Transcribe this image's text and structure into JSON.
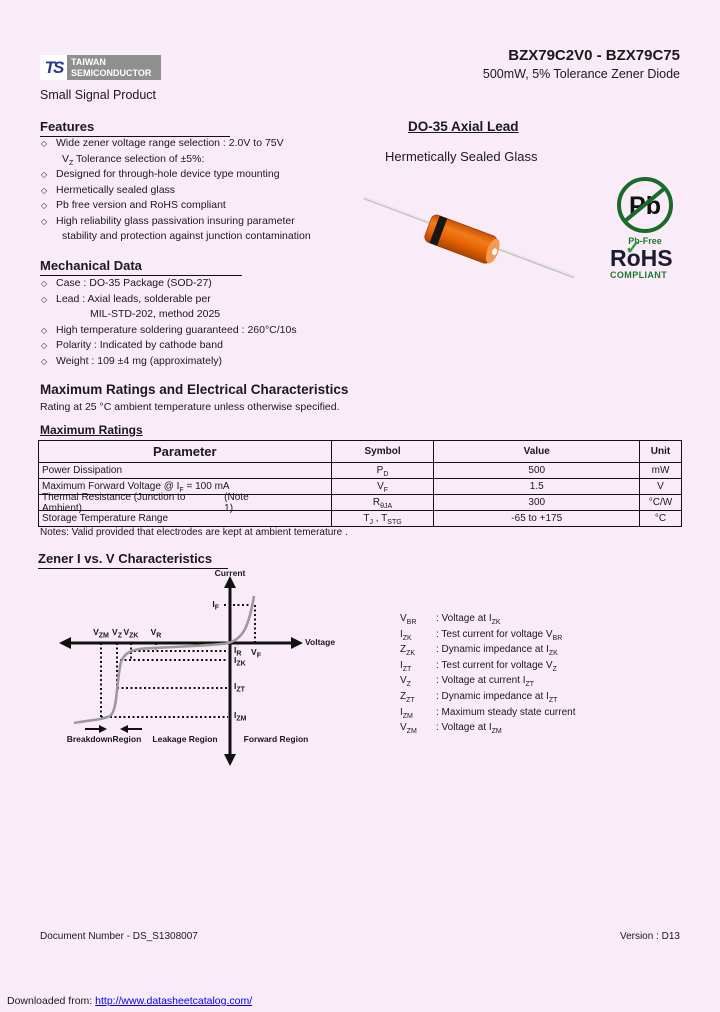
{
  "page": {
    "small_signal": "Small Signal Product",
    "part_range": "BZX79C2V0 - BZX79C75",
    "part_desc": "500mW, 5% Tolerance Zener Diode"
  },
  "logo": {
    "monogram": "TS",
    "line1": "TAIWAN",
    "line2": "SEMICONDUCTOR",
    "blue": "#2b3990",
    "gray": "#8f8f8f"
  },
  "features": {
    "heading": "Features",
    "lines": [
      {
        "bullet": true,
        "indent": 0,
        "text": "Wide zener voltage range selection : 2.0V to 75V"
      },
      {
        "bullet": false,
        "indent": 1,
        "text": "V~Z~ Tolerance selection of ±5%:"
      },
      {
        "bullet": true,
        "indent": 0,
        "text": "Designed for through-hole device type mounting"
      },
      {
        "bullet": true,
        "indent": 0,
        "text": "Hermetically sealed glass"
      },
      {
        "bullet": true,
        "indent": 0,
        "text": "Pb free version and RoHS compliant"
      },
      {
        "bullet": true,
        "indent": 0,
        "text": "High reliability glass passivation insuring parameter"
      },
      {
        "bullet": false,
        "indent": 1,
        "text": "stability and protection against junction contamination"
      }
    ]
  },
  "mechanical": {
    "heading": "Mechanical Data",
    "lines": [
      {
        "bullet": true,
        "indent": 0,
        "text": "Case : DO-35 Package (SOD-27)"
      },
      {
        "bullet": true,
        "indent": 0,
        "text": "Lead : Axial leads, solderable per"
      },
      {
        "bullet": false,
        "indent": 2,
        "text": "MIL-STD-202, method 2025"
      },
      {
        "bullet": true,
        "indent": 0,
        "text": "High temperature soldering guaranteed : 260°C/10s"
      },
      {
        "bullet": true,
        "indent": 0,
        "text": "Polarity : Indicated by cathode band"
      },
      {
        "bullet": true,
        "indent": 0,
        "text": "Weight : 109 ±4 mg (approximately)"
      }
    ]
  },
  "package": {
    "heading": "DO-35 Axial Lead",
    "subheading": "Hermetically Sealed Glass",
    "pb_free": {
      "symbol": "Pb",
      "caption": "Pb-Free",
      "green": "#1a6b2a"
    },
    "rohs": {
      "name": "RoHS",
      "caption": "COMPLIANT",
      "check": "✓"
    }
  },
  "ratings": {
    "heading": "Maximum Ratings and Electrical Characteristics",
    "subheading": "Rating at 25 °C ambient temperature unless otherwise specified.",
    "table_title": "Maximum Ratings",
    "columns": [
      "Parameter",
      "Symbol",
      "Value",
      "Unit"
    ],
    "rows": [
      {
        "parameter": "Power Dissipation",
        "note": "",
        "symbol": "P~D~",
        "value": "500",
        "unit": "mW"
      },
      {
        "parameter": "Maximum Forward Voltage @ I~F~ = 100 mA",
        "note": "",
        "symbol": "V~F~",
        "value": "1.5",
        "unit": "V"
      },
      {
        "parameter": "Thermal Resistance (Junction to Ambient)",
        "note": "(Note 1)",
        "symbol": "R~θJA~",
        "value": "300",
        "unit": "°C/W"
      },
      {
        "parameter": "Storage Temperature Range",
        "note": "",
        "symbol": "T~J~ , T~STG~",
        "value": "-65 to +175",
        "unit": "°C"
      }
    ],
    "notes": "Notes: Valid provided that electrodes are kept at ambient temerature ."
  },
  "chart": {
    "heading": "Zener I vs. V Characteristics",
    "y_axis": "Current",
    "x_axis": "Voltage",
    "labels": {
      "i_f": "I~F~",
      "i_r": "I~R~",
      "i_zk": "I~ZK~",
      "i_zt": "I~ZT~",
      "i_zm": "I~ZM~",
      "v_zm": "V~ZM~",
      "v_z": "V~Z~",
      "v_zk": "V~ZK~",
      "v_r": "V~R~",
      "v_f": "V~F~"
    },
    "regions": [
      "BreakdownRegion",
      "Leakage Region",
      "Forward Region"
    ]
  },
  "definitions": [
    {
      "symbol": "V~BR~",
      "desc": ": Voltage at I~ZK~"
    },
    {
      "symbol": "I~ZK~",
      "desc": ": Test current for voltage V~BR~"
    },
    {
      "symbol": "Z~ZK~",
      "desc": ": Dynamic impedance at I~ZK~"
    },
    {
      "symbol": "I~ZT~",
      "desc": ": Test current for voltage V~Z~"
    },
    {
      "symbol": "V~Z~",
      "desc": ": Voltage at current I~ZT~"
    },
    {
      "symbol": "Z~ZT~",
      "desc": ": Dynamic impedance at I~ZT~"
    },
    {
      "symbol": "I~ZM~",
      "desc": ": Maximum steady state current"
    },
    {
      "symbol": "V~ZM~",
      "desc": ": Voltage at I~ZM~"
    }
  ],
  "footer": {
    "doc_number": "Document Number - DS_S1308007",
    "version": "Version : D13",
    "download_prefix": "Downloaded from: ",
    "download_url": "http://www.datasheetcatalog.com/"
  }
}
